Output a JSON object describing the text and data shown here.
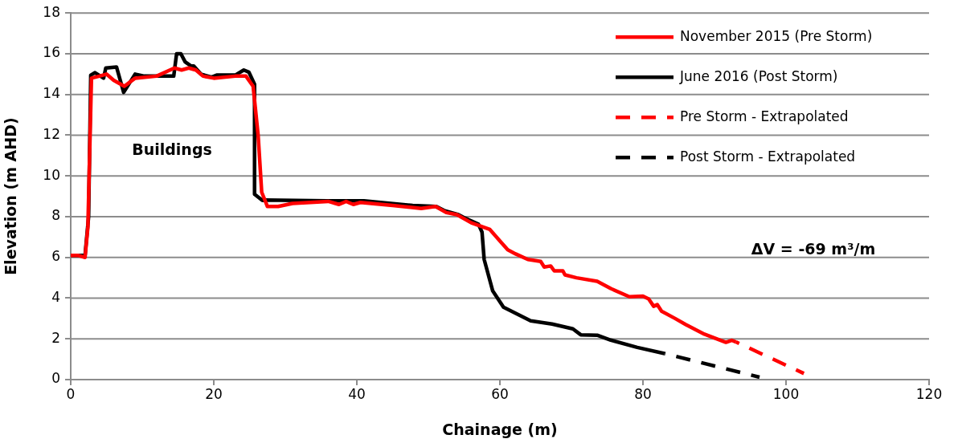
{
  "chart_data": {
    "type": "line",
    "xlabel": "Chainage (m)",
    "ylabel": "Elevation (m AHD)",
    "annotations": [
      "Buildings",
      "ΔV = -69 m³/m"
    ],
    "xlim": [
      0,
      120
    ],
    "xticks": [
      0,
      20,
      40,
      60,
      80,
      100,
      120
    ],
    "ylim": [
      0,
      18
    ],
    "yticks": [
      0,
      2,
      4,
      6,
      8,
      10,
      12,
      14,
      16,
      18
    ],
    "grid": "y",
    "legend": "top right",
    "marker": "none",
    "series": [
      {
        "name": "November 2015 (Pre Storm)",
        "color": "#ff0000",
        "line_style": "solid",
        "x": [
          0,
          1,
          2,
          2.4,
          2.9,
          4,
          5,
          6,
          7.5,
          9,
          12,
          14.5,
          15.5,
          16.5,
          17.5,
          18.5,
          20,
          23,
          24.5,
          25.5,
          26.2,
          26.7,
          27.5,
          29,
          31,
          36,
          37.5,
          38.5,
          39.5,
          40.5,
          45,
          49,
          51,
          52.5,
          54,
          56,
          58.6,
          60.1,
          61.1,
          62.2,
          63.9,
          65.7,
          66.2,
          67.1,
          67.6,
          68.8,
          69.1,
          70.7,
          73.6,
          75.5,
          78.1,
          80,
          80.8,
          81.5,
          82,
          82.6,
          84.5,
          86,
          88.6,
          91.6,
          92.4,
          93
        ],
        "values": [
          6.1,
          6.1,
          6.0,
          7.5,
          14.8,
          14.9,
          15.0,
          14.7,
          14.4,
          14.8,
          14.9,
          15.3,
          15.2,
          15.3,
          15.2,
          14.9,
          14.8,
          14.9,
          14.9,
          14.4,
          12,
          9.2,
          8.5,
          8.5,
          8.65,
          8.75,
          8.6,
          8.75,
          8.6,
          8.7,
          8.55,
          8.4,
          8.5,
          8.2,
          8.1,
          7.7,
          7.37,
          6.77,
          6.37,
          6.17,
          5.9,
          5.8,
          5.53,
          5.58,
          5.34,
          5.34,
          5.14,
          5.0,
          4.83,
          4.47,
          4.07,
          4.1,
          3.96,
          3.6,
          3.68,
          3.36,
          3.0,
          2.7,
          2.23,
          1.83,
          1.93,
          1.85
        ]
      },
      {
        "name": "June 2016 (Post Storm)",
        "color": "#000000",
        "line_style": "solid",
        "x": [
          0,
          2,
          2.5,
          2.8,
          3.4,
          4.6,
          4.9,
          6.4,
          7.4,
          9,
          10.3,
          13.9,
          14.4,
          14.8,
          15.4,
          16,
          16.8,
          17.2,
          18.2,
          19.7,
          20.4,
          23,
          24.2,
          24.9,
          25.7,
          25.7,
          26.8,
          27.2,
          35.8,
          41,
          47.8,
          51.1,
          52.2,
          54.2,
          55,
          57,
          57.5,
          57.8,
          59,
          60.5,
          64.3,
          67.3,
          70.2,
          71.3,
          73.6,
          75.5,
          79.2,
          83
        ],
        "values": [
          6.1,
          6.1,
          8,
          14.95,
          15.07,
          14.8,
          15.3,
          15.35,
          14.1,
          15.0,
          14.9,
          14.9,
          14.9,
          16.0,
          16.0,
          15.6,
          15.4,
          15.4,
          15.0,
          14.85,
          14.95,
          14.95,
          15.2,
          15.1,
          14.5,
          9.1,
          8.8,
          8.82,
          8.78,
          8.78,
          8.55,
          8.5,
          8.3,
          8.1,
          7.95,
          7.63,
          7.24,
          5.9,
          4.35,
          3.56,
          2.89,
          2.73,
          2.49,
          2.2,
          2.18,
          1.94,
          1.58,
          1.28
        ]
      },
      {
        "name": "Pre Storm - Extrapolated",
        "color": "#ff0000",
        "line_style": "dashed",
        "x": [
          93,
          102.5
        ],
        "values": [
          1.85,
          0.3
        ]
      },
      {
        "name": "Post Storm - Extrapolated",
        "color": "#000000",
        "line_style": "dashed",
        "x": [
          83,
          96.3
        ],
        "values": [
          1.28,
          0.12
        ]
      }
    ]
  }
}
